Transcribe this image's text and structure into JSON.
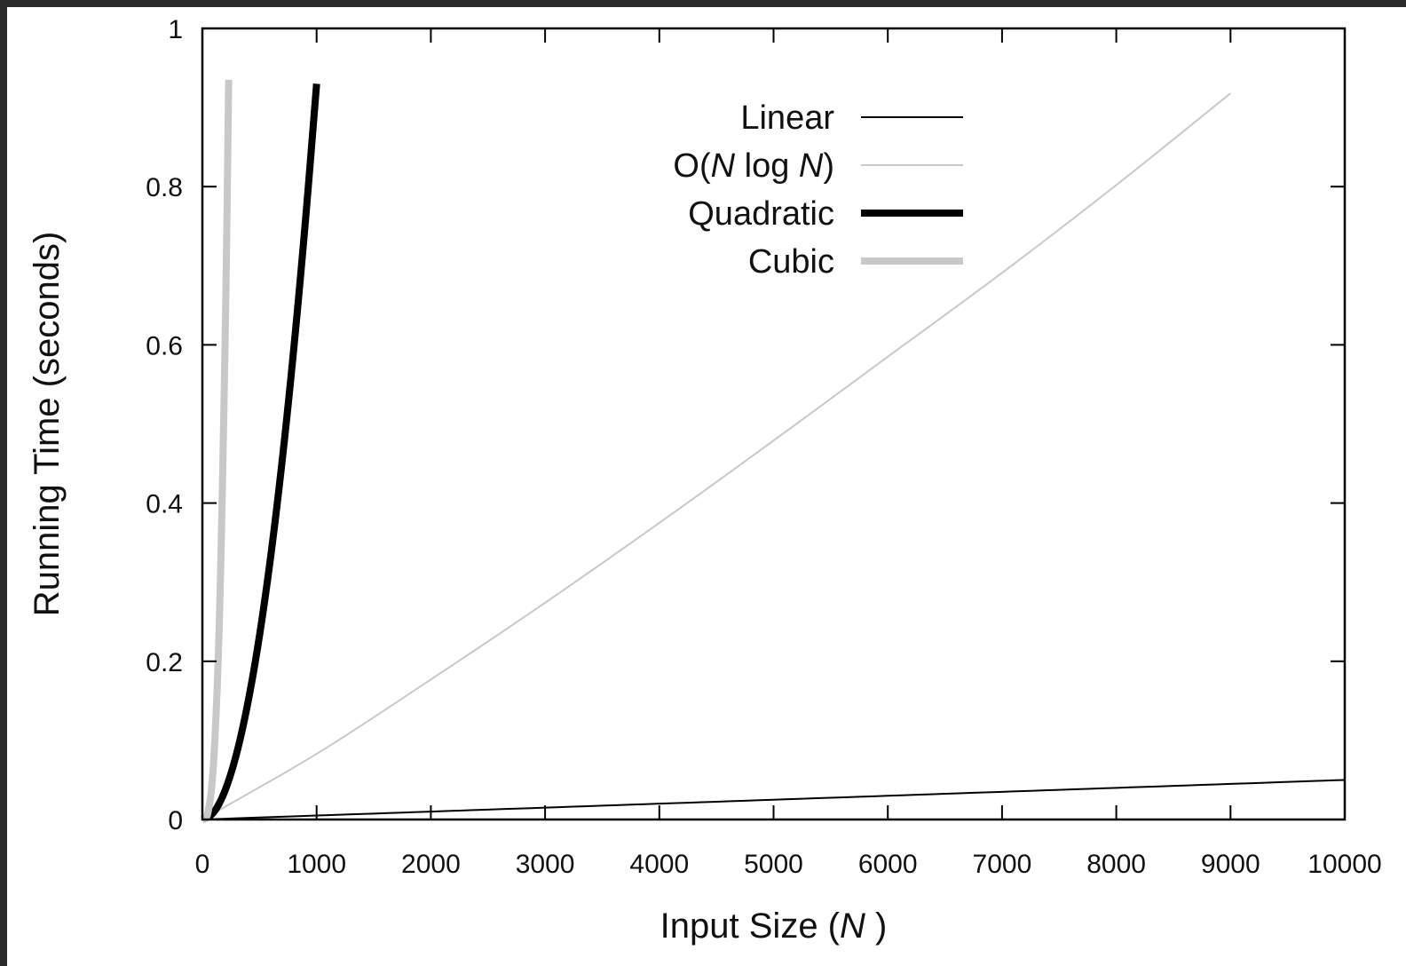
{
  "chart_data": {
    "type": "line",
    "title": "",
    "xlabel": "Input Size (N )",
    "xlabel_parts": [
      "Input Size (",
      "N",
      " )"
    ],
    "ylabel": "Running Time (seconds)",
    "xlim": [
      0,
      10000
    ],
    "ylim": [
      0,
      1
    ],
    "x_ticks": [
      0,
      1000,
      2000,
      3000,
      4000,
      5000,
      6000,
      7000,
      8000,
      9000,
      10000
    ],
    "x_tick_labels": [
      "0",
      "1000",
      "2000",
      "3000",
      "4000",
      "5000",
      "6000",
      "7000",
      "8000",
      "9000",
      "10000"
    ],
    "y_ticks": [
      0,
      0.2,
      0.4,
      0.6,
      0.8,
      1
    ],
    "y_tick_labels": [
      "0",
      "0.2",
      "0.4",
      "0.6",
      "0.8",
      "1"
    ],
    "grid": false,
    "legend_position": "top-center",
    "series": [
      {
        "name": "Linear",
        "name_parts": [
          "Linear"
        ],
        "color": "#000000",
        "style": "thin",
        "x": [
          0,
          1000,
          2000,
          3000,
          4000,
          5000,
          6000,
          7000,
          8000,
          9000,
          10000
        ],
        "y": [
          0,
          0.005,
          0.01,
          0.015,
          0.02,
          0.025,
          0.03,
          0.035,
          0.04,
          0.045,
          0.05
        ]
      },
      {
        "name": "O(N log N)",
        "name_parts": [
          "O(",
          "N",
          " log ",
          "N",
          ")"
        ],
        "color": "#c8c8c8",
        "style": "thin",
        "x": [
          0,
          1000,
          2000,
          3000,
          4000,
          5000,
          6000,
          7000,
          8000,
          9000
        ],
        "y": [
          0,
          0.083,
          0.177,
          0.274,
          0.375,
          0.479,
          0.585,
          0.691,
          0.802,
          0.918
        ]
      },
      {
        "name": "Quadratic",
        "name_parts": [
          "Quadratic"
        ],
        "color": "#000000",
        "style": "thick",
        "x": [
          0,
          100,
          200,
          300,
          400,
          500,
          600,
          700,
          800,
          900,
          1000
        ],
        "y": [
          0,
          0.0093,
          0.0372,
          0.0837,
          0.1488,
          0.2325,
          0.3348,
          0.4557,
          0.5952,
          0.7533,
          0.93
        ]
      },
      {
        "name": "Cubic",
        "name_parts": [
          "Cubic"
        ],
        "color": "#c8c8c8",
        "style": "thick",
        "x": [
          0,
          50,
          100,
          150,
          200,
          230
        ],
        "y": [
          0,
          0.0096,
          0.0766,
          0.2586,
          0.6131,
          0.935
        ]
      }
    ]
  }
}
